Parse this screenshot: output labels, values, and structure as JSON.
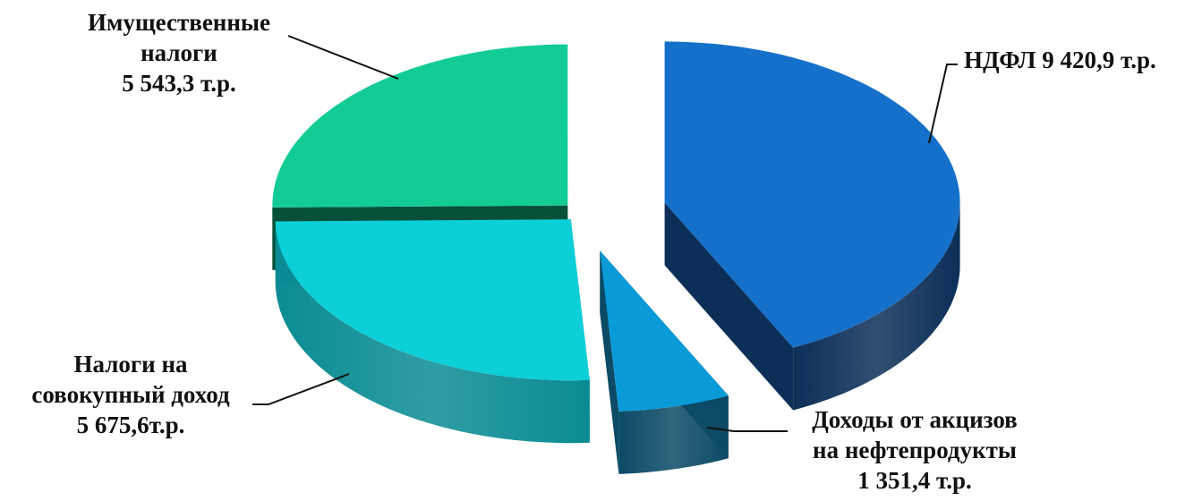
{
  "chart_data": {
    "type": "pie",
    "title": "",
    "slices": [
      {
        "name": "НДФЛ",
        "value": 9420.9,
        "label_lines": [
          "НДФЛ  9 420,9 т.р."
        ],
        "color_top": "#1570C9",
        "color_side": "#0C2F58"
      },
      {
        "name": "Доходы от акцизов на нефтепродукты",
        "value": 1351.4,
        "label_lines": [
          "Доходы от акцизов",
          "на нефтепродукты",
          "1 351,4 т.р."
        ],
        "color_top": "#0A9AD8",
        "color_side": "#0C4A66"
      },
      {
        "name": "Налоги на совокупный доход",
        "value": 5675.6,
        "label_lines": [
          "Налоги на",
          "совокупный доход",
          "5 675,6т.р."
        ],
        "color_top": "#0CCFD8",
        "color_side": "#0A8B93"
      },
      {
        "name": "Имущественные налоги",
        "value": 5543.3,
        "label_lines": [
          "Имущественные",
          "налоги",
          "5 543,3 т.р."
        ],
        "color_top": "#13CC95",
        "color_side": "#07513A"
      }
    ],
    "legend": "none",
    "units": "т.р."
  }
}
